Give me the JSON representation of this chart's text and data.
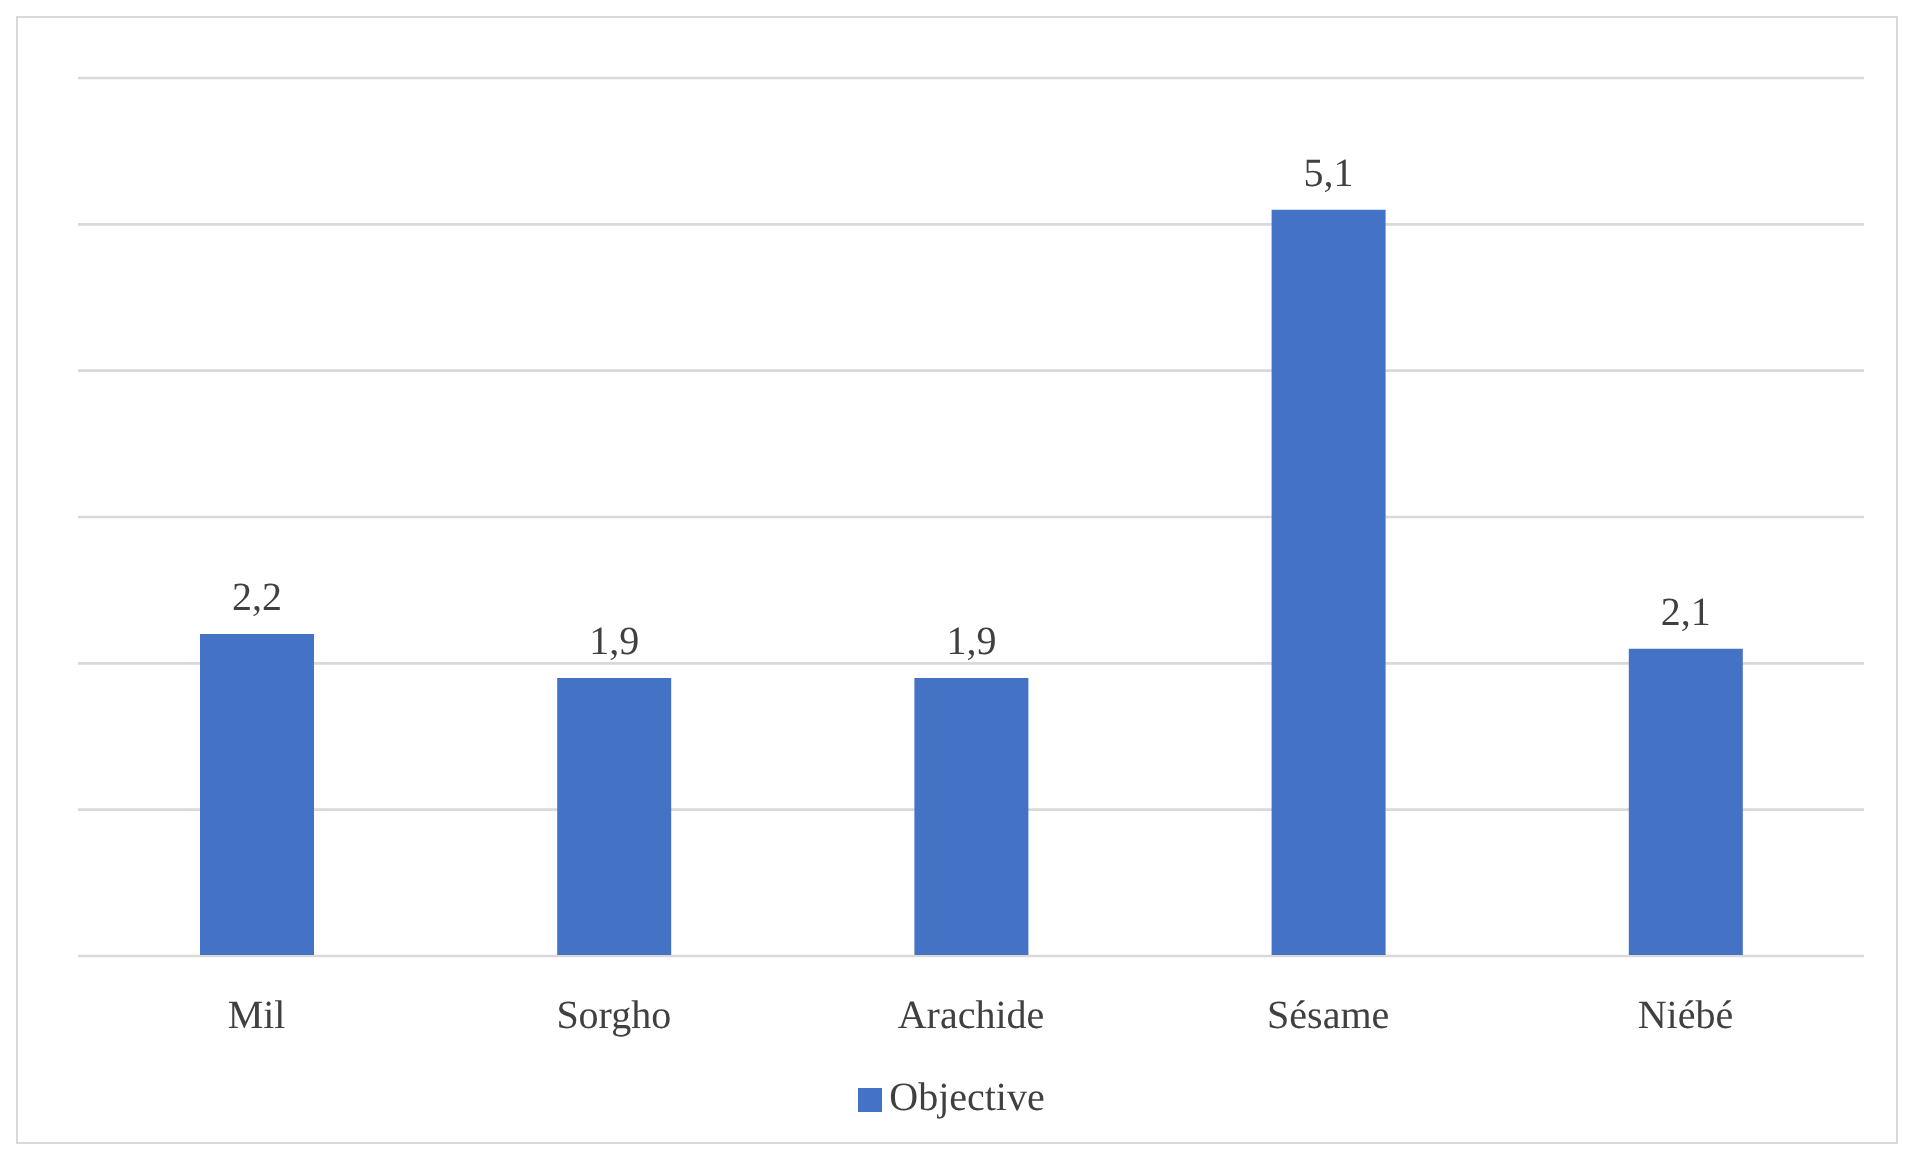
{
  "chart_data": {
    "type": "bar",
    "categories": [
      "Mil",
      "Sorgho",
      "Arachide",
      "Sésame",
      "Niébé"
    ],
    "series": [
      {
        "name": "Objective",
        "color": "#4472c4",
        "values": [
          2.2,
          1.9,
          1.9,
          5.1,
          2.1
        ],
        "value_labels": [
          "2,2",
          "1,9",
          "1,9",
          "5,1",
          "2,1"
        ]
      }
    ],
    "ylim": [
      0,
      6
    ],
    "yticks": [
      {
        "value": 0,
        "label": null
      },
      {
        "value": 1,
        "label": null
      },
      {
        "value": 2,
        "label": null
      },
      {
        "value": 3,
        "label": null
      },
      {
        "value": 4,
        "label": null
      },
      {
        "value": 5,
        "label": null
      },
      {
        "value": 6,
        "label": null
      }
    ],
    "grid": "y",
    "legend": "bottom"
  }
}
